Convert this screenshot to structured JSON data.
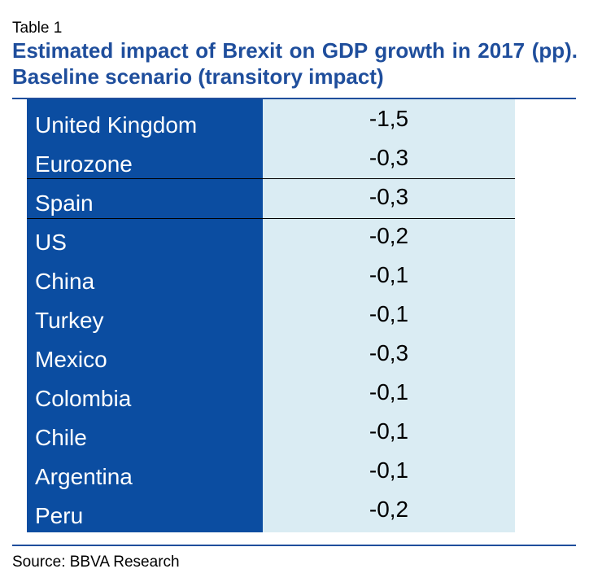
{
  "table": {
    "label": "Table 1",
    "title": "Estimated impact of Brexit on GDP growth in 2017 (pp). Baseline scenario (transitory impact)",
    "rows": [
      {
        "country": "United Kingdom",
        "value": "-1,5"
      },
      {
        "country": "Eurozone",
        "value": "-0,3"
      },
      {
        "country": "Spain",
        "value": "-0,3"
      },
      {
        "country": "US",
        "value": "-0,2"
      },
      {
        "country": "China",
        "value": "-0,1"
      },
      {
        "country": "Turkey",
        "value": "-0,1"
      },
      {
        "country": "Mexico",
        "value": "-0,3"
      },
      {
        "country": "Colombia",
        "value": "-0,1"
      },
      {
        "country": "Chile",
        "value": "-0,1"
      },
      {
        "country": "Argentina",
        "value": "-0,1"
      },
      {
        "country": "Peru",
        "value": "-0,2"
      }
    ],
    "source": "Source: BBVA Research"
  },
  "colors": {
    "title": "#1f4e9c",
    "label_column": "#0b4da1",
    "value_column": "#daecf3"
  }
}
